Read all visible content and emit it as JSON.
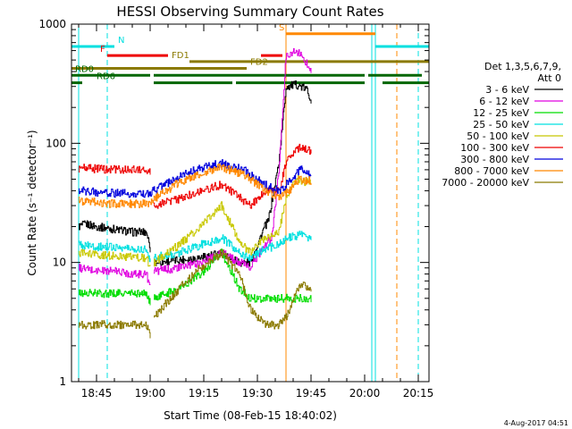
{
  "chart_data": {
    "type": "line",
    "title": "HESSI Observing Summary Count Rates",
    "xlabel": "Start Time (08-Feb-15 18:40:02)",
    "ylabel": "Count Rate (s⁻¹ detector⁻¹)",
    "yscale": "log",
    "ylim": [
      1,
      1000
    ],
    "xlim_minutes": [
      -2,
      98
    ],
    "x_ticks": [
      "18:45",
      "19:00",
      "19:15",
      "19:30",
      "19:45",
      "20:00",
      "20:15"
    ],
    "y_ticks": [
      "1",
      "10",
      "100",
      "1000"
    ],
    "detector_info": [
      "Det 1,3,5,6,7,9,",
      "Att 0"
    ],
    "series": [
      {
        "name": "3 - 6 keV",
        "color": "#000000",
        "segments": [
          {
            "x": [
              0,
              2,
              5,
              10,
              15,
              19,
              20
            ],
            "y": [
              20,
              21,
              20,
              19,
              18,
              18,
              13
            ]
          },
          {
            "x": [
              21,
              28,
              34,
              40,
              45,
              48,
              52,
              53,
              56,
              58,
              61,
              64,
              65
            ],
            "y": [
              10,
              10.5,
              11,
              12,
              10,
              10,
              20,
              22,
              70,
              300,
              310,
              280,
              230
            ]
          }
        ]
      },
      {
        "name": "6 - 12 keV",
        "color": "#e000e0",
        "segments": [
          {
            "x": [
              0,
              5,
              10,
              15,
              19,
              20
            ],
            "y": [
              9,
              8.5,
              8.5,
              8,
              8,
              6
            ]
          },
          {
            "x": [
              21,
              28,
              34,
              40,
              45,
              48,
              52,
              54,
              56,
              58,
              61,
              63,
              65
            ],
            "y": [
              8.5,
              9,
              10,
              12,
              10,
              9,
              14,
              16,
              60,
              550,
              600,
              500,
              420
            ]
          }
        ]
      },
      {
        "name": "12 - 25 keV",
        "color": "#00dd00",
        "segments": [
          {
            "x": [
              0,
              5,
              10,
              15,
              19,
              20
            ],
            "y": [
              5.5,
              5.5,
              5.5,
              5.5,
              5.5,
              4.5
            ]
          },
          {
            "x": [
              21,
              28,
              34,
              40,
              45,
              48,
              52,
              58,
              65
            ],
            "y": [
              5,
              6,
              8,
              12,
              6,
              5,
              5,
              5,
              5
            ]
          }
        ]
      },
      {
        "name": "25 - 50 keV",
        "color": "#00e0e0",
        "segments": [
          {
            "x": [
              0,
              5,
              10,
              15,
              19,
              20
            ],
            "y": [
              14,
              13.5,
              13.5,
              13,
              13,
              10
            ]
          },
          {
            "x": [
              21,
              28,
              34,
              40,
              45,
              48,
              52,
              56,
              58,
              62,
              65
            ],
            "y": [
              11,
              12,
              14,
              16,
              12,
              11,
              13,
              14,
              16,
              17,
              16
            ]
          }
        ]
      },
      {
        "name": "50 - 100 keV",
        "color": "#c8c800",
        "segments": [
          {
            "x": [
              0,
              5,
              10,
              15,
              19,
              20
            ],
            "y": [
              12,
              11.5,
              11.5,
              11,
              11,
              9
            ]
          },
          {
            "x": [
              21,
              28,
              34,
              40,
              45,
              48,
              52,
              56,
              58,
              61,
              63,
              65
            ],
            "y": [
              10,
              14,
              20,
              30,
              15,
              12,
              16,
              18,
              35,
              50,
              48,
              45
            ]
          }
        ]
      },
      {
        "name": "100 - 300 keV",
        "color": "#ee0000",
        "segments": [
          {
            "x": [
              0,
              5,
              10,
              15,
              19,
              20
            ],
            "y": [
              62,
              61,
              60,
              60,
              60,
              58
            ]
          },
          {
            "x": [
              21,
              28,
              34,
              40,
              45,
              48,
              52,
              56,
              58,
              62,
              65
            ],
            "y": [
              30,
              34,
              40,
              45,
              35,
              30,
              40,
              40,
              70,
              95,
              85
            ]
          }
        ]
      },
      {
        "name": "300 - 800 keV",
        "color": "#0000dd",
        "segments": [
          {
            "x": [
              0,
              5,
              10,
              15,
              19,
              21,
              28,
              34,
              40,
              46,
              52,
              56,
              58,
              62,
              65
            ],
            "y": [
              40,
              39,
              38,
              38,
              37,
              40,
              52,
              62,
              68,
              60,
              45,
              40,
              45,
              60,
              55
            ]
          }
        ]
      },
      {
        "name": "800 - 7000 keV",
        "color": "#ff8800",
        "segments": [
          {
            "x": [
              0,
              5,
              10,
              15,
              19,
              21,
              28,
              34,
              40,
              46,
              52,
              56,
              58,
              62,
              65
            ],
            "y": [
              33,
              32,
              31,
              31,
              31,
              34,
              47,
              56,
              63,
              55,
              41,
              35,
              38,
              50,
              48
            ]
          }
        ]
      },
      {
        "name": "7000 - 20000 keV",
        "color": "#8b7a00",
        "segments": [
          {
            "x": [
              0,
              5,
              10,
              15,
              19,
              20
            ],
            "y": [
              3,
              3,
              3,
              3,
              3,
              2.5
            ]
          },
          {
            "x": [
              21,
              28,
              34,
              40,
              45,
              48,
              52,
              56,
              58,
              62,
              65
            ],
            "y": [
              3.5,
              6,
              9,
              12,
              8,
              4,
              3,
              3,
              3.5,
              6.5,
              6
            ]
          }
        ]
      }
    ],
    "flags": [
      {
        "label": "N",
        "color": "#00e0e0",
        "y": 650,
        "x_ranges": [
          [
            -2,
            10
          ],
          [
            83,
            98
          ]
        ],
        "label_x": 11
      },
      {
        "label": "S",
        "color": "#ff8800",
        "y": 830,
        "x_ranges": [
          [
            58,
            83
          ]
        ],
        "label_x": 56
      },
      {
        "label": "F",
        "color": "#ee0000",
        "y": 545,
        "x_ranges": [
          [
            8,
            25
          ],
          [
            51,
            57
          ]
        ],
        "label_x": 6
      },
      {
        "label": "FD1",
        "color": "#8b7a00",
        "y": 485,
        "x_ranges": [
          [
            31,
            98
          ]
        ],
        "label_x": 26
      },
      {
        "label": "FD2",
        "color": "#8b7a00",
        "y": 425,
        "x_ranges": [
          [
            -2,
            47
          ]
        ],
        "label_x": 48
      },
      {
        "label": "RD0",
        "color": "#006600",
        "y": 372,
        "x_ranges": [
          [
            -2,
            20
          ],
          [
            21,
            80
          ],
          [
            81,
            96
          ]
        ],
        "label_x": -1
      },
      {
        "label": "RD6",
        "color": "#006600",
        "y": 322,
        "x_ranges": [
          [
            -2,
            1
          ],
          [
            21,
            43
          ],
          [
            44,
            80
          ],
          [
            85,
            98
          ]
        ],
        "label_x": 5
      }
    ],
    "vertical_markers": [
      {
        "x": 0,
        "color": "#00e0e0",
        "style": "solid"
      },
      {
        "x": 8,
        "color": "#00e0e0",
        "style": "dashed"
      },
      {
        "x": 58,
        "color": "#ff8800",
        "style": "solid"
      },
      {
        "x": 82,
        "color": "#00e0e0",
        "style": "solid"
      },
      {
        "x": 83,
        "color": "#00e0e0",
        "style": "solid"
      },
      {
        "x": 89,
        "color": "#ff8800",
        "style": "dashed"
      },
      {
        "x": 95,
        "color": "#00e0e0",
        "style": "dashed"
      }
    ],
    "timestamp": "4-Aug-2017 04:51"
  }
}
